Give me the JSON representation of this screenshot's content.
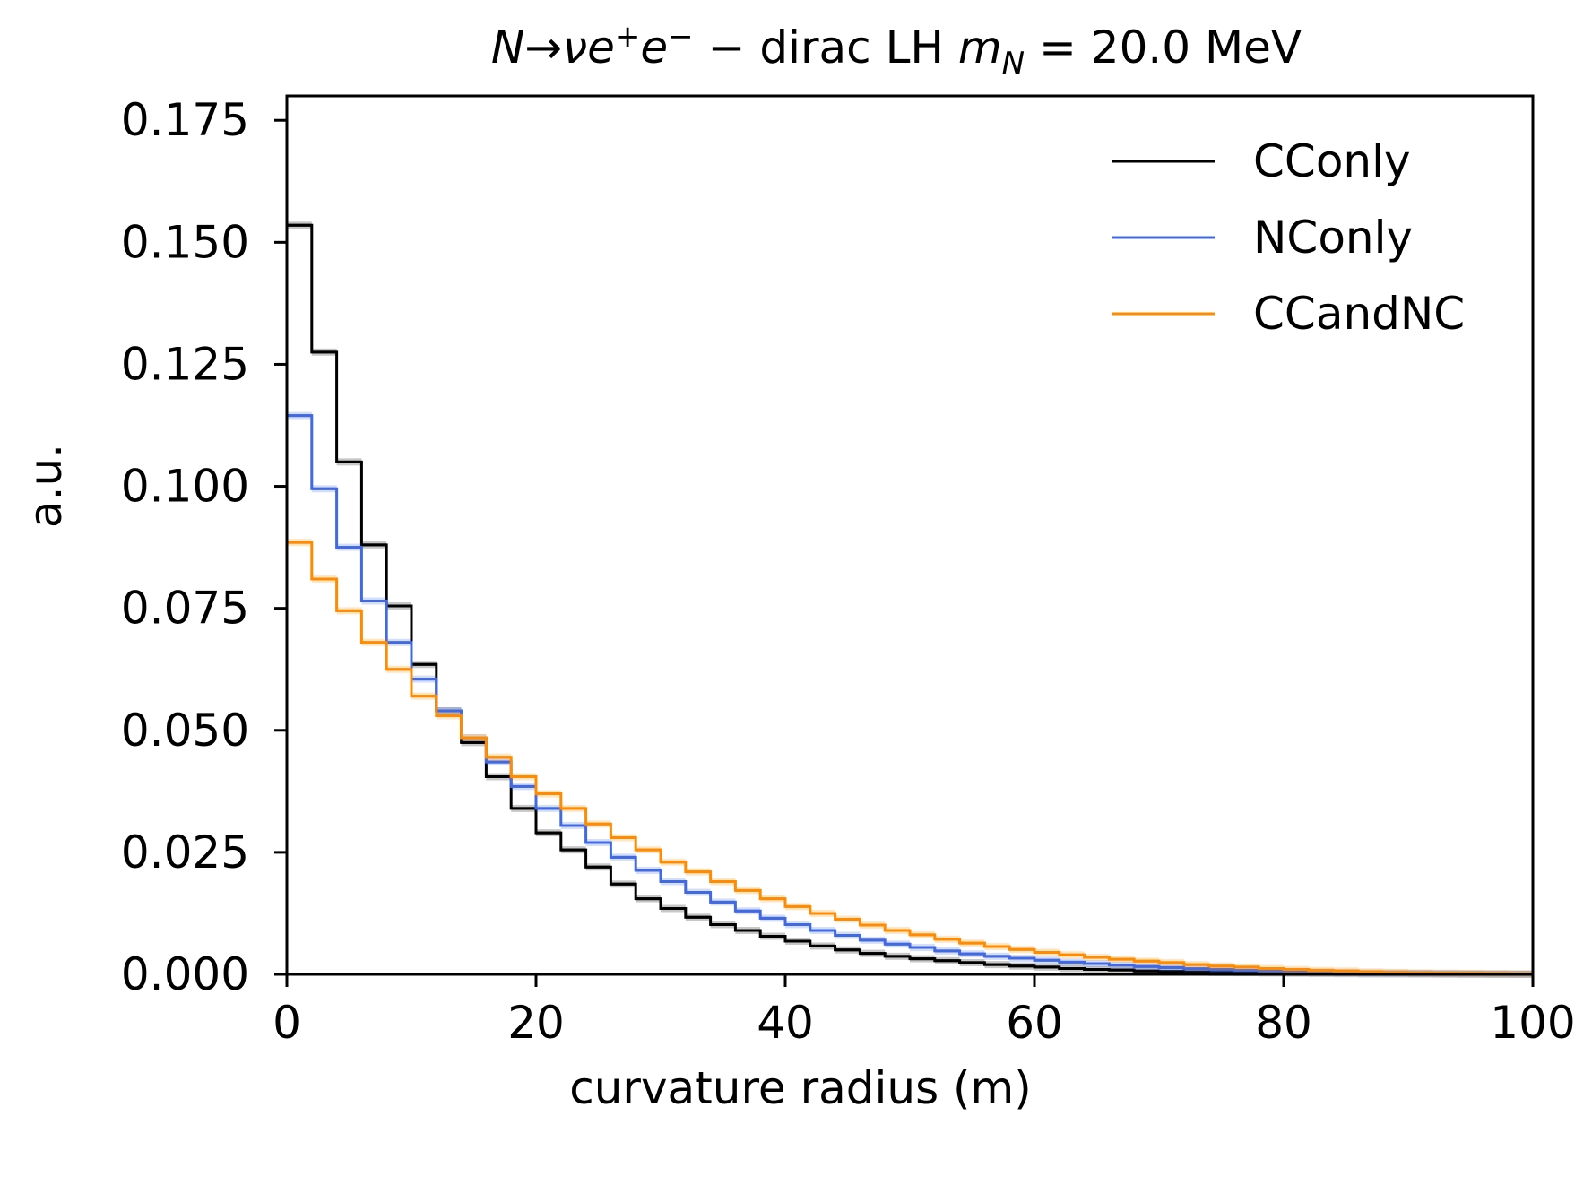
{
  "chart_data": {
    "type": "line",
    "subtype": "step-histogram",
    "title": {
      "plain": "N→νe⁺e⁻ − dirac LH m_N = 20.0 MeV",
      "parts": {
        "process_N": "N",
        "arrow": "→",
        "nu": "ν",
        "e": "e",
        "plus": "+",
        "e2": "e",
        "minus": "−",
        "dash": " − dirac LH ",
        "m": "m",
        "sub_N": "N",
        "value": " = 20.0 MeV"
      }
    },
    "xlabel": "curvature radius (m)",
    "ylabel": "a.u.",
    "xlim": [
      0,
      100
    ],
    "ylim": [
      0,
      0.18
    ],
    "x_ticks": [
      0,
      20,
      40,
      60,
      80,
      100
    ],
    "x_tick_labels": [
      "0",
      "20",
      "40",
      "60",
      "80",
      "100"
    ],
    "y_ticks": [
      0,
      0.025,
      0.05,
      0.075,
      0.1,
      0.125,
      0.15,
      0.175
    ],
    "y_tick_labels": [
      "0.000",
      "0.025",
      "0.050",
      "0.075",
      "0.100",
      "0.125",
      "0.150",
      "0.175"
    ],
    "grid": false,
    "legend_position": "top-right",
    "bin_edges": [
      0,
      2,
      4,
      6,
      8,
      10,
      12,
      14,
      16,
      18,
      20,
      22,
      24,
      26,
      28,
      30,
      32,
      34,
      36,
      38,
      40,
      42,
      44,
      46,
      48,
      50,
      52,
      54,
      56,
      58,
      60,
      62,
      64,
      66,
      68,
      70,
      72,
      74,
      76,
      78,
      80,
      82,
      84,
      86,
      88,
      90,
      92,
      94,
      96,
      98,
      100
    ],
    "series": [
      {
        "name": "CConly",
        "color": "#000000",
        "values": [
          0.1535,
          0.1275,
          0.105,
          0.088,
          0.0755,
          0.0635,
          0.054,
          0.0475,
          0.0405,
          0.034,
          0.029,
          0.0255,
          0.022,
          0.0185,
          0.0155,
          0.0135,
          0.0117,
          0.0102,
          0.009,
          0.0078,
          0.0068,
          0.0058,
          0.005,
          0.0043,
          0.0037,
          0.0032,
          0.0028,
          0.0024,
          0.002,
          0.0017,
          0.0015,
          0.0012,
          0.001,
          0.0009,
          0.0007,
          0.0006,
          0.0005,
          0.0004,
          0.00035,
          0.0003,
          0.00025,
          0.0002,
          0.00015,
          0.0001,
          0.0001,
          8e-05,
          6e-05,
          5e-05,
          4e-05,
          3e-05
        ]
      },
      {
        "name": "NConly",
        "color": "#4169e1",
        "values": [
          0.1145,
          0.0995,
          0.0875,
          0.0765,
          0.068,
          0.0605,
          0.054,
          0.0485,
          0.0435,
          0.0385,
          0.034,
          0.0305,
          0.027,
          0.024,
          0.0213,
          0.019,
          0.0168,
          0.0148,
          0.013,
          0.0115,
          0.0102,
          0.009,
          0.008,
          0.007,
          0.0062,
          0.0055,
          0.0048,
          0.0042,
          0.0037,
          0.0033,
          0.0029,
          0.0025,
          0.0022,
          0.0019,
          0.0016,
          0.0014,
          0.0012,
          0.001,
          0.0008,
          0.0007,
          0.0006,
          0.0005,
          0.0004,
          0.0003,
          0.00025,
          0.0002,
          0.00015,
          0.0001,
          8e-05,
          5e-05
        ]
      },
      {
        "name": "CCandNC",
        "color": "#ff8c00",
        "values": [
          0.0885,
          0.081,
          0.0745,
          0.068,
          0.0625,
          0.057,
          0.053,
          0.0485,
          0.0445,
          0.0405,
          0.037,
          0.034,
          0.0308,
          0.028,
          0.0255,
          0.023,
          0.021,
          0.019,
          0.0172,
          0.0155,
          0.0139,
          0.0125,
          0.0113,
          0.0101,
          0.009,
          0.0081,
          0.0072,
          0.0064,
          0.0057,
          0.0051,
          0.0045,
          0.004,
          0.0035,
          0.0031,
          0.0027,
          0.0024,
          0.002,
          0.0017,
          0.0015,
          0.0012,
          0.001,
          0.0008,
          0.0007,
          0.0005,
          0.0004,
          0.0003,
          0.00025,
          0.0002,
          0.00015,
          0.0001
        ]
      }
    ]
  }
}
